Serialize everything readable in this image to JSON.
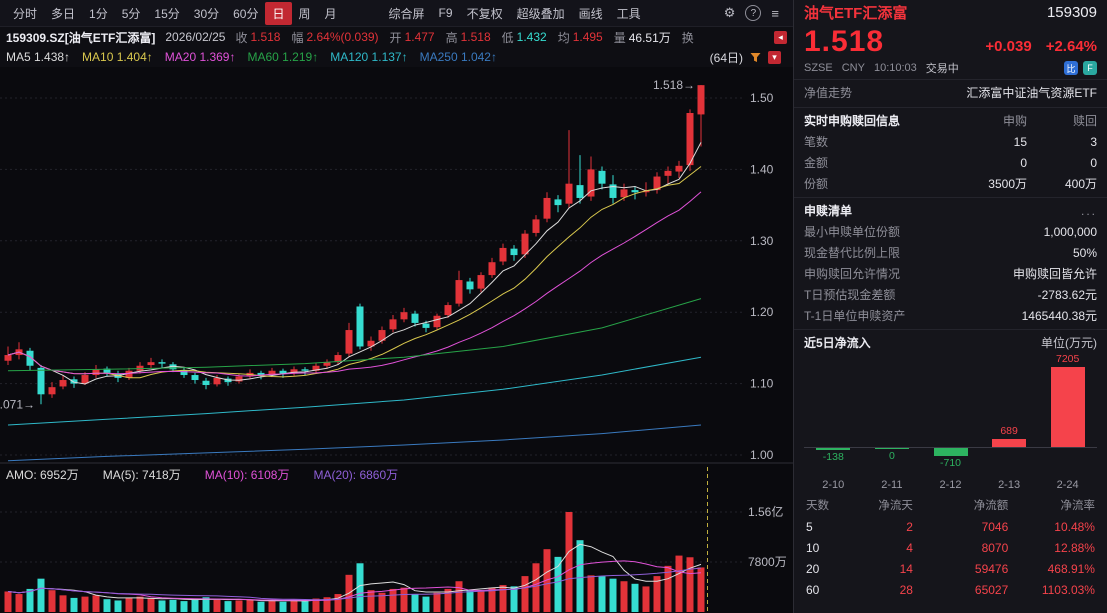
{
  "colors": {
    "up": "#e23339",
    "down": "#36ddd1",
    "panel_up": "#f5434b",
    "panel_down": "#2db360",
    "text": "#e6e6ec",
    "dim": "#8f8f99",
    "grid": "#23232b",
    "axis_text": "#b9b9c2",
    "accent_selected": "#c22832",
    "ma5": "#dcdcdc",
    "ma10": "#d9c84e",
    "ma20": "#e052d8",
    "ma60": "#27a348",
    "ma120": "#2fb9c9",
    "ma250": "#3a7abf",
    "vma5": "#dcdcdc",
    "vma10": "#e052d8",
    "vma20": "#8f5fd8",
    "crosshair": "#bfae3e"
  },
  "toolbar": {
    "periods": [
      "分时",
      "多日",
      "1分",
      "5分",
      "15分",
      "30分",
      "60分",
      "日",
      "周",
      "月"
    ],
    "selected": "日",
    "tools": [
      "综合屏",
      "F9",
      "不复权",
      "超级叠加",
      "画线",
      "工具"
    ],
    "gear_icon": "⚙",
    "help_icon": "?",
    "menu_icon": "≡"
  },
  "misc_icons": {
    "collapse_badge": "◂",
    "indicator_badge": "▾"
  },
  "info": {
    "symbol": "159309.SZ[油气ETF汇添富]",
    "date": "2026/02/25",
    "fields": [
      {
        "label": "收",
        "value": "1.518",
        "color": "up"
      },
      {
        "label": "幅",
        "value": "2.64%(0.039)",
        "color": "up"
      },
      {
        "label": "开",
        "value": "1.477",
        "color": "up"
      },
      {
        "label": "高",
        "value": "1.518",
        "color": "up"
      },
      {
        "label": "低",
        "value": "1.432",
        "color": "down"
      },
      {
        "label": "均",
        "value": "1.495",
        "color": "up"
      },
      {
        "label": "量",
        "value": "46.51万",
        "color": "text"
      },
      {
        "label": "换",
        "value": "",
        "color": "text"
      }
    ]
  },
  "ma_row": {
    "items": [
      {
        "name": "MA5",
        "value": "1.438",
        "arrow": "↑",
        "color": "ma5"
      },
      {
        "name": "MA10",
        "value": "1.404",
        "arrow": "↑",
        "color": "ma10"
      },
      {
        "name": "MA20",
        "value": "1.369",
        "arrow": "↑",
        "color": "ma20"
      },
      {
        "name": "MA60",
        "value": "1.219",
        "arrow": "↑",
        "color": "ma60"
      },
      {
        "name": "MA120",
        "value": "1.137",
        "arrow": "↑",
        "color": "ma120"
      },
      {
        "name": "MA250",
        "value": "1.042",
        "arrow": "↑",
        "color": "ma250"
      }
    ],
    "range_label": "(64日)"
  },
  "amo_row": [
    {
      "text": "AMO: 6952万",
      "color": "ma5"
    },
    {
      "text": "MA(5): 7418万",
      "color": "ma5"
    },
    {
      "text": "MA(10): 6108万",
      "color": "vma10"
    },
    {
      "text": "MA(20): 6860万",
      "color": "vma20"
    }
  ],
  "chart_data": {
    "type": "candlestick",
    "period": "日",
    "visible_days": 64,
    "title": "159309.SZ 油气ETF汇添富 日K",
    "y_ticks": [
      1.0,
      1.1,
      1.2,
      1.3,
      1.4,
      1.5
    ],
    "volume_unit": "万元",
    "volume_ticks": [
      {
        "label": "1.56亿",
        "value": 15600
      },
      {
        "label": "7800万",
        "value": 7800
      }
    ],
    "annotations": [
      {
        "text": "1.518→",
        "index": 63,
        "price": 1.518
      },
      {
        "text": "1.071→",
        "index": 3,
        "price": 1.071
      }
    ],
    "candles_ohlcv": [
      [
        1.132,
        1.152,
        1.126,
        1.14,
        3200
      ],
      [
        1.14,
        1.158,
        1.134,
        1.148,
        2800
      ],
      [
        1.146,
        1.15,
        1.118,
        1.125,
        3600
      ],
      [
        1.122,
        1.126,
        1.071,
        1.085,
        5200
      ],
      [
        1.085,
        1.102,
        1.08,
        1.095,
        3400
      ],
      [
        1.096,
        1.112,
        1.092,
        1.105,
        2600
      ],
      [
        1.106,
        1.11,
        1.094,
        1.1,
        2200
      ],
      [
        1.1,
        1.116,
        1.098,
        1.112,
        2400
      ],
      [
        1.112,
        1.126,
        1.108,
        1.12,
        2600
      ],
      [
        1.121,
        1.124,
        1.11,
        1.115,
        2000
      ],
      [
        1.114,
        1.118,
        1.102,
        1.108,
        1800
      ],
      [
        1.108,
        1.122,
        1.105,
        1.118,
        2200
      ],
      [
        1.118,
        1.13,
        1.114,
        1.125,
        2400
      ],
      [
        1.126,
        1.136,
        1.122,
        1.13,
        2200
      ],
      [
        1.13,
        1.134,
        1.122,
        1.128,
        1800
      ],
      [
        1.127,
        1.13,
        1.116,
        1.12,
        1900
      ],
      [
        1.119,
        1.122,
        1.108,
        1.112,
        1700
      ],
      [
        1.112,
        1.115,
        1.1,
        1.105,
        2100
      ],
      [
        1.104,
        1.108,
        1.092,
        1.098,
        2300
      ],
      [
        1.099,
        1.112,
        1.096,
        1.108,
        1900
      ],
      [
        1.107,
        1.11,
        1.097,
        1.102,
        1700
      ],
      [
        1.103,
        1.114,
        1.1,
        1.11,
        1800
      ],
      [
        1.11,
        1.12,
        1.107,
        1.115,
        1900
      ],
      [
        1.115,
        1.118,
        1.106,
        1.112,
        1600
      ],
      [
        1.112,
        1.122,
        1.109,
        1.118,
        1800
      ],
      [
        1.118,
        1.121,
        1.108,
        1.114,
        1600
      ],
      [
        1.114,
        1.124,
        1.111,
        1.12,
        1900
      ],
      [
        1.12,
        1.123,
        1.112,
        1.118,
        1700
      ],
      [
        1.118,
        1.129,
        1.115,
        1.125,
        2100
      ],
      [
        1.125,
        1.134,
        1.121,
        1.13,
        2300
      ],
      [
        1.13,
        1.144,
        1.126,
        1.14,
        2800
      ],
      [
        1.142,
        1.185,
        1.138,
        1.175,
        5800
      ],
      [
        1.208,
        1.212,
        1.148,
        1.152,
        7600
      ],
      [
        1.152,
        1.166,
        1.146,
        1.16,
        3400
      ],
      [
        1.16,
        1.18,
        1.156,
        1.175,
        3000
      ],
      [
        1.176,
        1.196,
        1.172,
        1.19,
        3600
      ],
      [
        1.19,
        1.206,
        1.186,
        1.2,
        3800
      ],
      [
        1.198,
        1.202,
        1.18,
        1.185,
        2800
      ],
      [
        1.184,
        1.188,
        1.172,
        1.178,
        2400
      ],
      [
        1.179,
        1.198,
        1.176,
        1.195,
        3000
      ],
      [
        1.196,
        1.214,
        1.192,
        1.21,
        3600
      ],
      [
        1.212,
        1.258,
        1.208,
        1.245,
        4800
      ],
      [
        1.243,
        1.248,
        1.226,
        1.232,
        3400
      ],
      [
        1.233,
        1.256,
        1.228,
        1.252,
        3200
      ],
      [
        1.252,
        1.276,
        1.248,
        1.27,
        3800
      ],
      [
        1.271,
        1.296,
        1.266,
        1.29,
        4200
      ],
      [
        1.289,
        1.294,
        1.272,
        1.28,
        4000
      ],
      [
        1.281,
        1.315,
        1.276,
        1.31,
        5600
      ],
      [
        1.311,
        1.336,
        1.306,
        1.33,
        7600
      ],
      [
        1.331,
        1.368,
        1.326,
        1.36,
        9800
      ],
      [
        1.358,
        1.364,
        1.34,
        1.35,
        8600
      ],
      [
        1.352,
        1.455,
        1.346,
        1.38,
        15600
      ],
      [
        1.378,
        1.42,
        1.352,
        1.36,
        11200
      ],
      [
        1.362,
        1.418,
        1.356,
        1.4,
        5720
      ],
      [
        1.398,
        1.404,
        1.372,
        1.38,
        5600
      ],
      [
        1.379,
        1.392,
        1.352,
        1.36,
        5200
      ],
      [
        1.361,
        1.38,
        1.356,
        1.372,
        4800
      ],
      [
        1.371,
        1.376,
        1.358,
        1.368,
        4400
      ],
      [
        1.368,
        1.382,
        1.362,
        1.37,
        3990
      ],
      [
        1.371,
        1.396,
        1.366,
        1.39,
        5600
      ],
      [
        1.391,
        1.404,
        1.38,
        1.398,
        7200
      ],
      [
        1.397,
        1.412,
        1.388,
        1.405,
        8800
      ],
      [
        1.406,
        1.484,
        1.398,
        1.479,
        8538
      ],
      [
        1.477,
        1.518,
        1.432,
        1.518,
        6952
      ]
    ],
    "price_ma_derived": [
      {
        "name": "MA5",
        "period": 5,
        "color": "ma5"
      },
      {
        "name": "MA10",
        "period": 10,
        "color": "ma10"
      },
      {
        "name": "MA20",
        "period": 20,
        "color": "ma20"
      }
    ],
    "price_ma_sparse": [
      {
        "name": "MA60",
        "color": "ma60",
        "points": [
          [
            0,
            1.118
          ],
          [
            9,
            1.12
          ],
          [
            18,
            1.123
          ],
          [
            27,
            1.128
          ],
          [
            36,
            1.137
          ],
          [
            45,
            1.152
          ],
          [
            54,
            1.178
          ],
          [
            63,
            1.219
          ]
        ]
      },
      {
        "name": "MA120",
        "color": "ma120",
        "points": [
          [
            0,
            1.042
          ],
          [
            9,
            1.05
          ],
          [
            18,
            1.058
          ],
          [
            27,
            1.067
          ],
          [
            36,
            1.077
          ],
          [
            45,
            1.092
          ],
          [
            54,
            1.112
          ],
          [
            63,
            1.137
          ]
        ]
      },
      {
        "name": "MA250",
        "color": "ma250",
        "points": [
          [
            0,
            0.992
          ],
          [
            9,
            0.998
          ],
          [
            18,
            1.003
          ],
          [
            27,
            1.008
          ],
          [
            36,
            1.014
          ],
          [
            45,
            1.021
          ],
          [
            54,
            1.03
          ],
          [
            63,
            1.042
          ]
        ]
      }
    ],
    "volume_ma_derived": [
      {
        "name": "MA(5)",
        "period": 5,
        "color": "vma5"
      },
      {
        "name": "MA(10)",
        "period": 10,
        "color": "vma10"
      },
      {
        "name": "MA(20)",
        "period": 20,
        "color": "vma20"
      }
    ]
  },
  "panel": {
    "name": "油气ETF汇添富",
    "code": "159309",
    "price": "1.518",
    "change": "+0.039",
    "change_pct": "+2.64%",
    "exchange": "SZSE",
    "currency": "CNY",
    "time": "10:10:03",
    "status": "交易中",
    "nav_label": "净值走势",
    "nav_value": "汇添富中证油气资源ETF",
    "realtime": {
      "title": "实时申购赎回信息",
      "col_subscribe": "申购",
      "col_redeem": "赎回",
      "rows": [
        {
          "label": "笔数",
          "subscribe": "15",
          "redeem": "3"
        },
        {
          "label": "金额",
          "subscribe": "0",
          "redeem": "0"
        },
        {
          "label": "份额",
          "subscribe": "3500万",
          "redeem": "400万"
        }
      ]
    },
    "list": {
      "title": "申赎清单",
      "more": "...",
      "rows": [
        {
          "label": "最小申赎单位份额",
          "value": "1,000,000"
        },
        {
          "label": "现金替代比例上限",
          "value": "50%"
        },
        {
          "label": "申购赎回允许情况",
          "value": "申购赎回皆允许"
        },
        {
          "label": "T日预估现金差额",
          "value": "-2783.62元"
        },
        {
          "label": "T-1日单位申赎资产",
          "value": "1465440.38元"
        }
      ]
    },
    "flow": {
      "title": "近5日净流入",
      "unit": "单位(万元)",
      "bars": [
        {
          "date": "2-10",
          "value": -138
        },
        {
          "date": "2-11",
          "value": 0
        },
        {
          "date": "2-12",
          "value": -710
        },
        {
          "date": "2-13",
          "value": 689
        },
        {
          "date": "2-24",
          "value": 7205
        }
      ],
      "table": {
        "headers": [
          "天数",
          "净流天",
          "净流额",
          "净流率"
        ],
        "rows": [
          [
            "5",
            "2",
            "7046",
            "10.48%"
          ],
          [
            "10",
            "4",
            "8070",
            "12.88%"
          ],
          [
            "20",
            "14",
            "59476",
            "468.91%"
          ],
          [
            "60",
            "28",
            "65027",
            "1103.03%"
          ]
        ]
      }
    }
  }
}
